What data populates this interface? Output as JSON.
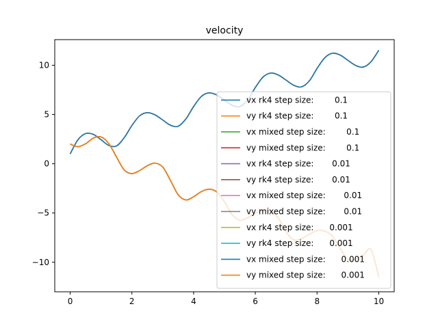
{
  "chart_data": {
    "type": "line",
    "title": "velocity",
    "xlabel": "",
    "ylabel": "",
    "xlim": [
      -0.5,
      10.5
    ],
    "ylim": [
      -13,
      12.6
    ],
    "x_ticks": [
      0,
      2,
      4,
      6,
      8,
      10
    ],
    "y_ticks": [
      -10,
      -5,
      0,
      5,
      10
    ],
    "grid": false,
    "legend_position": "lower-right",
    "x": [
      0,
      0.25,
      0.5,
      0.75,
      1.0,
      1.25,
      1.5,
      1.75,
      2.0,
      2.25,
      2.5,
      2.75,
      3.0,
      3.25,
      3.5,
      3.75,
      4.0,
      4.25,
      4.5,
      4.75,
      5.0,
      5.25,
      5.5,
      5.75,
      6.0,
      6.25,
      6.5,
      6.75,
      7.0,
      7.25,
      7.5,
      7.75,
      8.0,
      8.25,
      8.5,
      8.75,
      9.0,
      9.25,
      9.5,
      9.75,
      10.0
    ],
    "series": [
      {
        "name": "vx rk4 step size:        0.1",
        "color": "#1f77b4",
        "values": [
          1.0,
          2.43,
          3.06,
          2.98,
          2.44,
          1.86,
          1.81,
          2.64,
          3.88,
          4.86,
          5.19,
          4.96,
          4.44,
          3.91,
          3.81,
          4.55,
          5.81,
          6.83,
          7.2,
          6.98,
          6.46,
          5.94,
          5.81,
          6.48,
          7.74,
          8.8,
          9.21,
          9.0,
          8.48,
          7.96,
          7.81,
          8.41,
          9.67,
          10.76,
          11.22,
          11.03,
          10.5,
          9.98,
          9.82,
          10.36,
          11.52
        ]
      },
      {
        "name": "vy rk4 step size:        0.1",
        "color": "#ff7f0e",
        "values": [
          2.0,
          1.73,
          2.03,
          2.6,
          2.72,
          2.05,
          0.69,
          -0.62,
          -1.0,
          -0.69,
          -0.2,
          0.06,
          -0.34,
          -1.7,
          -3.15,
          -3.68,
          -3.35,
          -2.83,
          -2.58,
          -2.87,
          -3.86,
          -5.18,
          -5.73,
          -5.5,
          -5.02,
          -4.69,
          -4.84,
          -5.54,
          -6.94,
          -7.73,
          -7.59,
          -7.16,
          -6.8,
          -6.84,
          -7.34,
          -8.59,
          -9.71,
          -9.68,
          -9.29,
          -8.72,
          -11.5
        ]
      },
      {
        "name": "vx mixed step size:        0.1",
        "color": "#2ca02c",
        "values": [
          1.0,
          2.43,
          3.06,
          2.98,
          2.44,
          1.86,
          1.81,
          2.64,
          3.88,
          4.86,
          5.19,
          4.96,
          4.44,
          3.91,
          3.81,
          4.55,
          5.81,
          6.83,
          7.2,
          6.98,
          6.46,
          5.94,
          5.81,
          6.48,
          7.74,
          8.8,
          9.21,
          9.0,
          8.48,
          7.96,
          7.81,
          8.41,
          9.67,
          10.76,
          11.22,
          11.03,
          10.5,
          9.98,
          9.82,
          10.36,
          11.52
        ]
      },
      {
        "name": "vy mixed step size:        0.1",
        "color": "#d62728",
        "values": [
          2.0,
          1.73,
          2.03,
          2.6,
          2.72,
          2.05,
          0.69,
          -0.62,
          -1.0,
          -0.69,
          -0.2,
          0.06,
          -0.34,
          -1.7,
          -3.15,
          -3.68,
          -3.35,
          -2.83,
          -2.58,
          -2.87,
          -3.86,
          -5.18,
          -5.73,
          -5.5,
          -5.02,
          -4.69,
          -4.84,
          -5.54,
          -6.94,
          -7.73,
          -7.59,
          -7.16,
          -6.8,
          -6.84,
          -7.34,
          -8.59,
          -9.71,
          -9.68,
          -9.29,
          -8.72,
          -11.5
        ]
      },
      {
        "name": "vx rk4 step size:       0.01",
        "color": "#9467bd",
        "values": [
          1.0,
          2.43,
          3.06,
          2.98,
          2.44,
          1.86,
          1.81,
          2.64,
          3.88,
          4.86,
          5.19,
          4.96,
          4.44,
          3.91,
          3.81,
          4.55,
          5.81,
          6.83,
          7.2,
          6.98,
          6.46,
          5.94,
          5.81,
          6.48,
          7.74,
          8.8,
          9.21,
          9.0,
          8.48,
          7.96,
          7.81,
          8.41,
          9.67,
          10.76,
          11.22,
          11.03,
          10.5,
          9.98,
          9.82,
          10.36,
          11.52
        ]
      },
      {
        "name": "vy rk4 step size:       0.01",
        "color": "#8c564b",
        "values": [
          2.0,
          1.73,
          2.03,
          2.6,
          2.72,
          2.05,
          0.69,
          -0.62,
          -1.0,
          -0.69,
          -0.2,
          0.06,
          -0.34,
          -1.7,
          -3.15,
          -3.68,
          -3.35,
          -2.83,
          -2.58,
          -2.87,
          -3.86,
          -5.18,
          -5.73,
          -5.5,
          -5.02,
          -4.69,
          -4.84,
          -5.54,
          -6.94,
          -7.73,
          -7.59,
          -7.16,
          -6.8,
          -6.84,
          -7.34,
          -8.59,
          -9.71,
          -9.68,
          -9.29,
          -8.72,
          -11.5
        ]
      },
      {
        "name": "vx mixed step size:       0.01",
        "color": "#e377c2",
        "values": [
          1.0,
          2.43,
          3.06,
          2.98,
          2.44,
          1.86,
          1.81,
          2.64,
          3.88,
          4.86,
          5.19,
          4.96,
          4.44,
          3.91,
          3.81,
          4.55,
          5.81,
          6.83,
          7.2,
          6.98,
          6.46,
          5.94,
          5.81,
          6.48,
          7.74,
          8.8,
          9.21,
          9.0,
          8.48,
          7.96,
          7.81,
          8.41,
          9.67,
          10.76,
          11.22,
          11.03,
          10.5,
          9.98,
          9.82,
          10.36,
          11.52
        ]
      },
      {
        "name": "vy mixed step size:       0.01",
        "color": "#7f7f7f",
        "values": [
          2.0,
          1.73,
          2.03,
          2.6,
          2.72,
          2.05,
          0.69,
          -0.62,
          -1.0,
          -0.69,
          -0.2,
          0.06,
          -0.34,
          -1.7,
          -3.15,
          -3.68,
          -3.35,
          -2.83,
          -2.58,
          -2.87,
          -3.86,
          -5.18,
          -5.73,
          -5.5,
          -5.02,
          -4.69,
          -4.84,
          -5.54,
          -6.94,
          -7.73,
          -7.59,
          -7.16,
          -6.8,
          -6.84,
          -7.34,
          -8.59,
          -9.71,
          -9.68,
          -9.29,
          -8.72,
          -11.5
        ]
      },
      {
        "name": "vx rk4 step size:      0.001",
        "color": "#bcbd22",
        "values": [
          1.0,
          2.43,
          3.06,
          2.98,
          2.44,
          1.86,
          1.81,
          2.64,
          3.88,
          4.86,
          5.19,
          4.96,
          4.44,
          3.91,
          3.81,
          4.55,
          5.81,
          6.83,
          7.2,
          6.98,
          6.46,
          5.94,
          5.81,
          6.48,
          7.74,
          8.8,
          9.21,
          9.0,
          8.48,
          7.96,
          7.81,
          8.41,
          9.67,
          10.76,
          11.22,
          11.03,
          10.5,
          9.98,
          9.82,
          10.36,
          11.52
        ]
      },
      {
        "name": "vy rk4 step size:      0.001",
        "color": "#17becf",
        "values": [
          2.0,
          1.73,
          2.03,
          2.6,
          2.72,
          2.05,
          0.69,
          -0.62,
          -1.0,
          -0.69,
          -0.2,
          0.06,
          -0.34,
          -1.7,
          -3.15,
          -3.68,
          -3.35,
          -2.83,
          -2.58,
          -2.87,
          -3.86,
          -5.18,
          -5.73,
          -5.5,
          -5.02,
          -4.69,
          -4.84,
          -5.54,
          -6.94,
          -7.73,
          -7.59,
          -7.16,
          -6.8,
          -6.84,
          -7.34,
          -8.59,
          -9.71,
          -9.68,
          -9.29,
          -8.72,
          -11.5
        ]
      },
      {
        "name": "vx mixed step size:      0.001",
        "color": "#1f77b4",
        "values": [
          1.0,
          2.43,
          3.06,
          2.98,
          2.44,
          1.86,
          1.81,
          2.64,
          3.88,
          4.86,
          5.19,
          4.96,
          4.44,
          3.91,
          3.81,
          4.55,
          5.81,
          6.83,
          7.2,
          6.98,
          6.46,
          5.94,
          5.81,
          6.48,
          7.74,
          8.8,
          9.21,
          9.0,
          8.48,
          7.96,
          7.81,
          8.41,
          9.67,
          10.76,
          11.22,
          11.03,
          10.5,
          9.98,
          9.82,
          10.36,
          11.52
        ]
      },
      {
        "name": "vy mixed step size:      0.001",
        "color": "#ff7f0e",
        "values": [
          2.0,
          1.73,
          2.03,
          2.6,
          2.72,
          2.05,
          0.69,
          -0.62,
          -1.0,
          -0.69,
          -0.2,
          0.06,
          -0.34,
          -1.7,
          -3.15,
          -3.68,
          -3.35,
          -2.83,
          -2.58,
          -2.87,
          -3.86,
          -5.18,
          -5.73,
          -5.5,
          -5.02,
          -4.69,
          -4.84,
          -5.54,
          -6.94,
          -7.73,
          -7.59,
          -7.16,
          -6.8,
          -6.84,
          -7.34,
          -8.59,
          -9.71,
          -9.68,
          -9.29,
          -8.72,
          -11.5
        ]
      }
    ]
  }
}
